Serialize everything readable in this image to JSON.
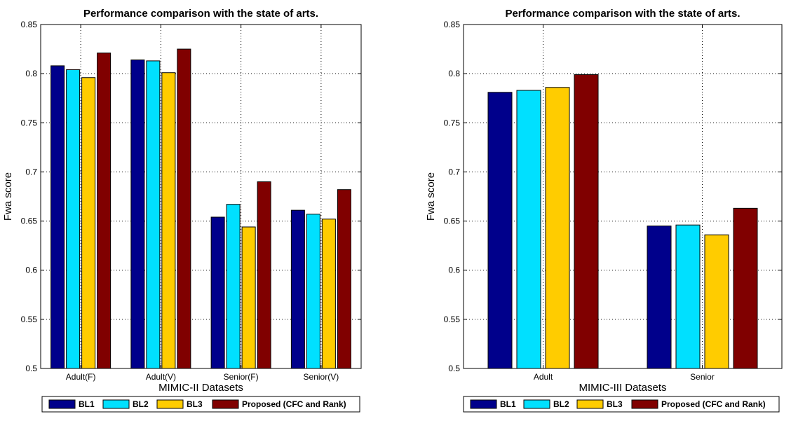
{
  "chart_data": [
    {
      "type": "bar",
      "title": "Performance comparison with the state of arts.",
      "xlabel": "MIMIC-II Datasets",
      "ylabel": "Fwa score",
      "ylim": [
        0.5,
        0.85
      ],
      "yticks": [
        "0.5",
        "0.55",
        "0.6",
        "0.65",
        "0.7",
        "0.75",
        "0.8",
        "0.85"
      ],
      "grid": true,
      "legend_position": "bottom",
      "categories": [
        "Adult(F)",
        "Adult(V)",
        "Senior(F)",
        "Senior(V)"
      ],
      "series": [
        {
          "name": "BL1",
          "color": "#00008B",
          "values": [
            0.808,
            0.814,
            0.654,
            0.661
          ]
        },
        {
          "name": "BL2",
          "color": "#00E0FF",
          "values": [
            0.804,
            0.813,
            0.667,
            0.657
          ]
        },
        {
          "name": "BL3",
          "color": "#FFCC00",
          "values": [
            0.796,
            0.801,
            0.644,
            0.652
          ]
        },
        {
          "name": "Proposed (CFC and Rank)",
          "color": "#800000",
          "values": [
            0.821,
            0.825,
            0.69,
            0.682
          ]
        }
      ]
    },
    {
      "type": "bar",
      "title": "Performance comparison with the state of arts.",
      "xlabel": "MIMIC-III Datasets",
      "ylabel": "Fwa score",
      "ylim": [
        0.5,
        0.85
      ],
      "yticks": [
        "0.5",
        "0.55",
        "0.6",
        "0.65",
        "0.7",
        "0.75",
        "0.8",
        "0.85"
      ],
      "grid": true,
      "legend_position": "bottom",
      "categories": [
        "Adult",
        "Senior"
      ],
      "series": [
        {
          "name": "BL1",
          "color": "#00008B",
          "values": [
            0.781,
            0.645
          ]
        },
        {
          "name": "BL2",
          "color": "#00E0FF",
          "values": [
            0.783,
            0.646
          ]
        },
        {
          "name": "BL3",
          "color": "#FFCC00",
          "values": [
            0.786,
            0.636
          ]
        },
        {
          "name": "Proposed (CFC and Rank)",
          "color": "#800000",
          "values": [
            0.799,
            0.663
          ]
        }
      ]
    }
  ]
}
